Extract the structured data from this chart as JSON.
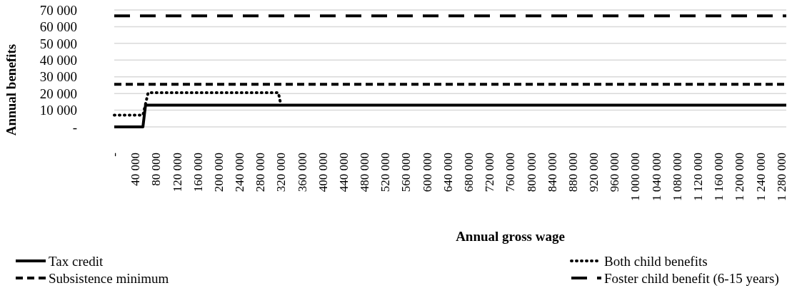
{
  "chart_data": {
    "type": "line",
    "xlabel": "Annual gross wage",
    "ylabel": "Annual benefits",
    "xlim": [
      0,
      1290000
    ],
    "xticks": [
      {
        "value": 0,
        "label": "-"
      },
      {
        "value": 40000,
        "label": "40 000"
      },
      {
        "value": 80000,
        "label": "80 000"
      },
      {
        "value": 120000,
        "label": "120 000"
      },
      {
        "value": 160000,
        "label": "160 000"
      },
      {
        "value": 200000,
        "label": "200 000"
      },
      {
        "value": 240000,
        "label": "240 000"
      },
      {
        "value": 280000,
        "label": "280 000"
      },
      {
        "value": 320000,
        "label": "320 000"
      },
      {
        "value": 360000,
        "label": "360 000"
      },
      {
        "value": 400000,
        "label": "400 000"
      },
      {
        "value": 440000,
        "label": "440 000"
      },
      {
        "value": 480000,
        "label": "480 000"
      },
      {
        "value": 520000,
        "label": "520 000"
      },
      {
        "value": 560000,
        "label": "560 000"
      },
      {
        "value": 600000,
        "label": "600 000"
      },
      {
        "value": 640000,
        "label": "640 000"
      },
      {
        "value": 680000,
        "label": "680 000"
      },
      {
        "value": 720000,
        "label": "720 000"
      },
      {
        "value": 760000,
        "label": "760 000"
      },
      {
        "value": 800000,
        "label": "800 000"
      },
      {
        "value": 840000,
        "label": "840 000"
      },
      {
        "value": 880000,
        "label": "880 000"
      },
      {
        "value": 920000,
        "label": "920 000"
      },
      {
        "value": 960000,
        "label": "960 000"
      },
      {
        "value": 1000000,
        "label": "1 000 000"
      },
      {
        "value": 1040000,
        "label": "1 040 000"
      },
      {
        "value": 1080000,
        "label": "1 080 000"
      },
      {
        "value": 1120000,
        "label": "1 120 000"
      },
      {
        "value": 1160000,
        "label": "1 160 000"
      },
      {
        "value": 1200000,
        "label": "1 200 000"
      },
      {
        "value": 1240000,
        "label": "1 240 000"
      },
      {
        "value": 1280000,
        "label": "1 280 000"
      }
    ],
    "ylim": [
      0,
      70000
    ],
    "yticks": [
      {
        "value": 0,
        "label": "-"
      },
      {
        "value": 10000,
        "label": "10 000"
      },
      {
        "value": 20000,
        "label": "20 000"
      },
      {
        "value": 30000,
        "label": "30 000"
      },
      {
        "value": 40000,
        "label": "40 000"
      },
      {
        "value": 50000,
        "label": "50 000"
      },
      {
        "value": 60000,
        "label": "60 000"
      },
      {
        "value": 70000,
        "label": "70 000"
      }
    ],
    "grid": "y",
    "legend": "bottom",
    "marker": "none",
    "series": [
      {
        "name": "Tax credit",
        "color": "#000000",
        "line_style": "solid",
        "x": [
          0,
          55000,
          60000,
          1290000
        ],
        "values": [
          0,
          0,
          13000,
          13000
        ]
      },
      {
        "name": "Both child benefits",
        "color": "#000000",
        "line_style": "dotted",
        "x": [
          0,
          55000,
          65000,
          315000,
          320000
        ],
        "values": [
          7000,
          7000,
          20500,
          20500,
          13000
        ]
      },
      {
        "name": "Subsistence minimum",
        "color": "#000000",
        "line_style": "dashed",
        "x": [
          0,
          1290000
        ],
        "values": [
          25500,
          25500
        ]
      },
      {
        "name": "Foster child benefit (6-15 years)",
        "color": "#000000",
        "line_style": "longdash",
        "x": [
          0,
          1290000
        ],
        "values": [
          66500,
          66500
        ]
      }
    ]
  }
}
